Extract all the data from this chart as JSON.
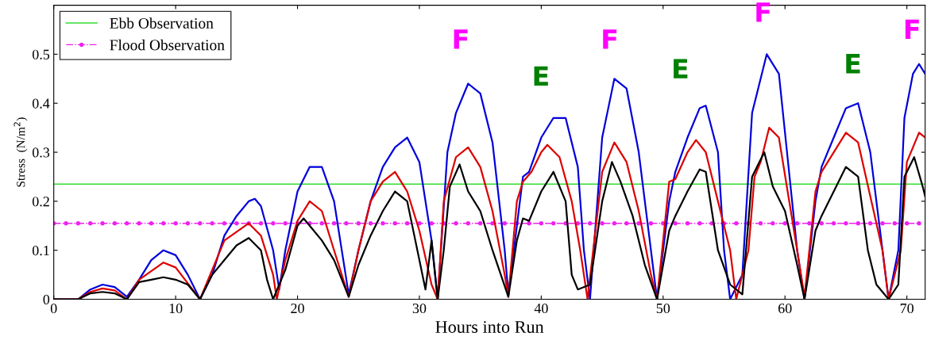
{
  "chart_data": {
    "type": "line",
    "xlabel": "Hours into Run",
    "ylabel": "Stress  (N/m$^{2}$)",
    "xlim": [
      0,
      71.5
    ],
    "xticks": [
      0,
      10,
      20,
      30,
      40,
      50,
      60,
      70
    ],
    "ylim": [
      0,
      0.6
    ],
    "yticks": [
      0,
      0.1,
      0.2,
      0.3,
      0.4,
      0.5
    ],
    "grid": false,
    "legend": "top left",
    "series": [
      {
        "name": "Ebb Observation",
        "color": "#33dd33",
        "line_style": "solid",
        "marker": "none",
        "x": [
          0,
          71.5
        ],
        "values": [
          0.235,
          0.235
        ]
      },
      {
        "name": "Flood Observation",
        "color": "#ee22ee",
        "line_style": "dashdot",
        "marker": "circle",
        "x": [
          0,
          1,
          2,
          3,
          4,
          5,
          6,
          7,
          8,
          9,
          10,
          11,
          12,
          13,
          14,
          15,
          16,
          17,
          18,
          19,
          20,
          21,
          22,
          23,
          24,
          25,
          26,
          27,
          28,
          29,
          30,
          31,
          32,
          33,
          34,
          35,
          36,
          37,
          38,
          39,
          40,
          41,
          42,
          43,
          44,
          45,
          46,
          47,
          48,
          49,
          50,
          51,
          52,
          53,
          54,
          55,
          56,
          57,
          58,
          59,
          60,
          61,
          62,
          63,
          64,
          65,
          66,
          67,
          68,
          69,
          70,
          71
        ],
        "values": [
          0.155,
          0.155,
          0.155,
          0.155,
          0.155,
          0.155,
          0.155,
          0.155,
          0.155,
          0.155,
          0.155,
          0.155,
          0.155,
          0.155,
          0.155,
          0.155,
          0.155,
          0.155,
          0.155,
          0.155,
          0.155,
          0.155,
          0.155,
          0.155,
          0.155,
          0.155,
          0.155,
          0.155,
          0.155,
          0.155,
          0.155,
          0.155,
          0.155,
          0.155,
          0.155,
          0.155,
          0.155,
          0.155,
          0.155,
          0.155,
          0.155,
          0.155,
          0.155,
          0.155,
          0.155,
          0.155,
          0.155,
          0.155,
          0.155,
          0.155,
          0.155,
          0.155,
          0.155,
          0.155,
          0.155,
          0.155,
          0.155,
          0.155,
          0.155,
          0.155,
          0.155,
          0.155,
          0.155,
          0.155,
          0.155,
          0.155,
          0.155,
          0.155,
          0.155,
          0.155,
          0.155,
          0.155
        ]
      },
      {
        "color": "#0000dd",
        "line_style": "solid",
        "marker": "none",
        "x": [
          0,
          2,
          3,
          4,
          5,
          6,
          7,
          8,
          9,
          10,
          11,
          12,
          13,
          14,
          15,
          16,
          16.5,
          17,
          18,
          18.5,
          19,
          20,
          21,
          22,
          23,
          24.2,
          25,
          26,
          27,
          28,
          29,
          30,
          31,
          31.5,
          32.3,
          33,
          34,
          35,
          36,
          37,
          37.3,
          38,
          38.5,
          39,
          40,
          41,
          42,
          43,
          43.5,
          44,
          45,
          46,
          47,
          48,
          49,
          49.5,
          50.5,
          51,
          52,
          53,
          53.5,
          54.5,
          55,
          55.5,
          56.5,
          57.3,
          58.5,
          59.5,
          61,
          61.6,
          62.5,
          63,
          64,
          65,
          66,
          67,
          68,
          68.5,
          69.3,
          69.8,
          70.5,
          71,
          71.5
        ],
        "values": [
          0,
          0,
          0.02,
          0.03,
          0.025,
          0.005,
          0.04,
          0.08,
          0.1,
          0.09,
          0.05,
          0,
          0.05,
          0.13,
          0.17,
          0.2,
          0.205,
          0.19,
          0.1,
          0.02,
          0.1,
          0.22,
          0.27,
          0.27,
          0.2,
          0.01,
          0.1,
          0.2,
          0.27,
          0.31,
          0.33,
          0.28,
          0.12,
          0,
          0.3,
          0.38,
          0.44,
          0.42,
          0.32,
          0.1,
          0.01,
          0.15,
          0.25,
          0.26,
          0.33,
          0.37,
          0.37,
          0.27,
          0.1,
          0,
          0.33,
          0.45,
          0.43,
          0.3,
          0.1,
          0,
          0.2,
          0.26,
          0.33,
          0.39,
          0.395,
          0.3,
          0.1,
          0,
          0.05,
          0.38,
          0.5,
          0.46,
          0.1,
          0,
          0.2,
          0.27,
          0.33,
          0.39,
          0.4,
          0.3,
          0.1,
          0,
          0.1,
          0.37,
          0.46,
          0.48,
          0.46
        ]
      },
      {
        "color": "#dd0000",
        "line_style": "solid",
        "marker": "none",
        "x": [
          0,
          2,
          3,
          4,
          5,
          6,
          7,
          9,
          10,
          12,
          14,
          16,
          17,
          18,
          18.3,
          19,
          20,
          21,
          22,
          23,
          24.2,
          25,
          26,
          27,
          28,
          29,
          30,
          31,
          31.5,
          32,
          33,
          34,
          35,
          36,
          37,
          37.3,
          38,
          38.5,
          39.2,
          40,
          40.5,
          41.5,
          42.5,
          43.2,
          43.8,
          45,
          46,
          47,
          48,
          49,
          49.5,
          50.5,
          51,
          52,
          52.7,
          53.5,
          54.5,
          55.5,
          56,
          57,
          57.5,
          58,
          58.7,
          59.5,
          61,
          61.6,
          62.5,
          63,
          64,
          65,
          66,
          67,
          68,
          68.5,
          69.5,
          70,
          71,
          71.5
        ],
        "values": [
          0,
          0,
          0.015,
          0.022,
          0.018,
          0,
          0.04,
          0.075,
          0.065,
          0,
          0.12,
          0.155,
          0.13,
          0.05,
          0,
          0.08,
          0.16,
          0.2,
          0.18,
          0.1,
          0.005,
          0.1,
          0.2,
          0.24,
          0.26,
          0.22,
          0.14,
          0.03,
          0,
          0.2,
          0.29,
          0.31,
          0.27,
          0.18,
          0.05,
          0.005,
          0.2,
          0.24,
          0.26,
          0.3,
          0.315,
          0.29,
          0.2,
          0.1,
          0,
          0.26,
          0.32,
          0.28,
          0.18,
          0.05,
          0,
          0.24,
          0.245,
          0.3,
          0.325,
          0.3,
          0.2,
          0.1,
          0,
          0.1,
          0.25,
          0.28,
          0.35,
          0.33,
          0.1,
          0.005,
          0.22,
          0.26,
          0.3,
          0.34,
          0.32,
          0.21,
          0.1,
          0,
          0.1,
          0.28,
          0.34,
          0.33
        ]
      },
      {
        "color": "#000000",
        "line_style": "solid",
        "marker": "none",
        "x": [
          0,
          2,
          3,
          4,
          5,
          6,
          7,
          8,
          9,
          10,
          11,
          12,
          13,
          14,
          15,
          16,
          17,
          17.5,
          18,
          19,
          20,
          20.5,
          21,
          22,
          23,
          24.2,
          25,
          26,
          27,
          28,
          29,
          30,
          30.5,
          31,
          31.5,
          32,
          32.5,
          33.3,
          34,
          35,
          36,
          37.3,
          38,
          38.5,
          39,
          40,
          41,
          42,
          42.5,
          43,
          44,
          45,
          45.8,
          46.5,
          47.5,
          48.5,
          49.5,
          50.5,
          51,
          52,
          53,
          53.5,
          54.5,
          55.5,
          56.5,
          57.3,
          58.3,
          59,
          60,
          61,
          61.6,
          62.5,
          63,
          64,
          65,
          66,
          66.8,
          67.5,
          68.5,
          69.3,
          69.8,
          70.6,
          71.3,
          71.5
        ],
        "values": [
          0,
          0,
          0.012,
          0.015,
          0.012,
          0,
          0.035,
          0.04,
          0.045,
          0.04,
          0.03,
          0,
          0.05,
          0.08,
          0.11,
          0.125,
          0.1,
          0.04,
          0,
          0.06,
          0.15,
          0.165,
          0.15,
          0.12,
          0.08,
          0.005,
          0.07,
          0.13,
          0.18,
          0.22,
          0.2,
          0.08,
          0.02,
          0.12,
          0,
          0.1,
          0.23,
          0.275,
          0.22,
          0.18,
          0.1,
          0.005,
          0.12,
          0.165,
          0.16,
          0.22,
          0.26,
          0.2,
          0.05,
          0.02,
          0.03,
          0.2,
          0.28,
          0.24,
          0.17,
          0.07,
          0,
          0.14,
          0.17,
          0.22,
          0.265,
          0.26,
          0.1,
          0.03,
          0.01,
          0.25,
          0.3,
          0.23,
          0.18,
          0.07,
          0,
          0.14,
          0.17,
          0.22,
          0.27,
          0.25,
          0.1,
          0.03,
          0,
          0.03,
          0.25,
          0.29,
          0.23,
          0.21
        ]
      }
    ],
    "annotations": [
      "F",
      "E",
      "F",
      "E",
      "F",
      "E",
      "F"
    ]
  }
}
